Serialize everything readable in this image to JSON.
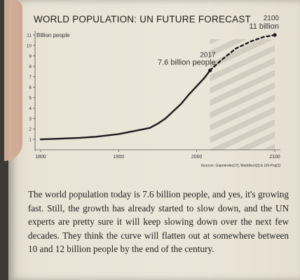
{
  "chart_data": {
    "type": "line",
    "title": "WORLD POPULATION: UN FUTURE FORECAST",
    "ylabel": "Billion people",
    "xlabel": "",
    "xlim": [
      1800,
      2100
    ],
    "ylim": [
      0,
      11
    ],
    "x_ticks": [
      1800,
      1900,
      2000,
      2100
    ],
    "y_ticks": [
      1,
      2,
      3,
      4,
      5,
      6,
      7,
      8,
      9,
      10,
      11
    ],
    "grid": false,
    "series": [
      {
        "style": "solid",
        "x": [
          1800,
          1820,
          1850,
          1870,
          1900,
          1920,
          1940,
          1950,
          1960,
          1970,
          1980,
          1990,
          2000,
          2010,
          2017
        ],
        "y": [
          1.0,
          1.05,
          1.15,
          1.25,
          1.5,
          1.8,
          2.1,
          2.5,
          3.0,
          3.7,
          4.4,
          5.3,
          6.1,
          6.9,
          7.6
        ]
      },
      {
        "style": "dashed",
        "x": [
          2017,
          2030,
          2050,
          2070,
          2085,
          2100
        ],
        "y": [
          7.6,
          8.5,
          9.7,
          10.4,
          10.8,
          11.0
        ]
      }
    ],
    "annotations": [
      {
        "year": "2017",
        "text": "7.6 billion people",
        "x": 2017,
        "y": 7.6
      },
      {
        "year": "2100",
        "text": "11 billion",
        "x": 2100,
        "y": 11.0
      }
    ],
    "shaded_range": [
      2017,
      2100
    ],
    "sources": "Sources: Gapminder[17], Maddison[2] & UN-Pop[1]"
  },
  "body_text": "The world population today is 7.6 billion people, and yes, it's growing fast. Still, the growth has already started to slow down, and the UN experts are pretty sure it will keep slowing down over the next few decades. They think the curve will flatten out at somewhere between 10 and 12 billion people by the end of the century.",
  "colors": {
    "line": "#1a1a1a",
    "stripe": "#cfc9be",
    "text": "#1f1f1f"
  }
}
